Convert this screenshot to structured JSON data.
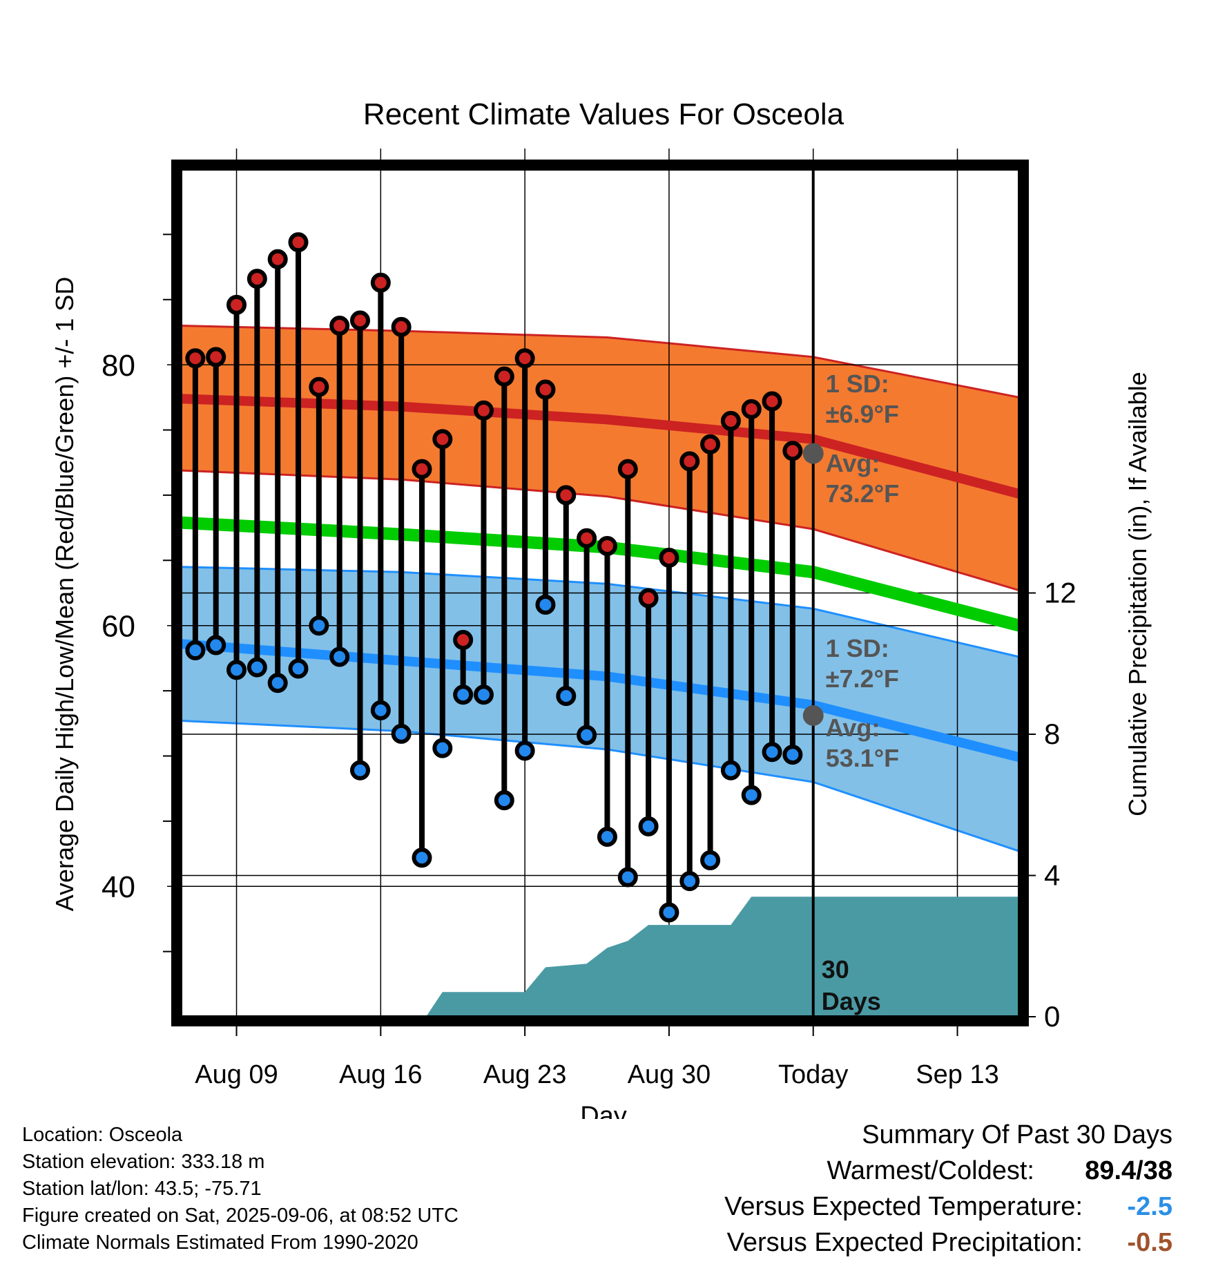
{
  "chart_data": {
    "type": "line",
    "title": "Recent Climate Values For Osceola",
    "xlabel": "Day",
    "ylabel": "Average Daily High/Low/Mean (Red/Blue/Green) +/- 1 SD",
    "y2label": "Cumulative Precipitation (in), If Available",
    "x_tick_labels": [
      "Aug 09",
      "Aug 16",
      "Aug 23",
      "Aug 30",
      "Today",
      "Sep 13"
    ],
    "y_ticks": [
      40,
      60,
      80
    ],
    "y2_ticks": [
      0,
      4,
      8,
      12
    ],
    "ylim": [
      30,
      95
    ],
    "y2lim": [
      0,
      24
    ],
    "xlim": [
      -0.7,
      40
    ],
    "days": [
      "Aug 07",
      "Aug 08",
      "Aug 09",
      "Aug 10",
      "Aug 11",
      "Aug 12",
      "Aug 13",
      "Aug 14",
      "Aug 15",
      "Aug 16",
      "Aug 17",
      "Aug 18",
      "Aug 19",
      "Aug 20",
      "Aug 21",
      "Aug 22",
      "Aug 23",
      "Aug 24",
      "Aug 25",
      "Aug 26",
      "Aug 27",
      "Aug 28",
      "Aug 29",
      "Aug 30",
      "Aug 31",
      "Sep 01",
      "Sep 02",
      "Sep 03",
      "Sep 04",
      "Sep 05"
    ],
    "series": [
      {
        "name": "Daily High",
        "color": "#cc2222",
        "values": [
          80.5,
          80.6,
          84.6,
          86.6,
          88.1,
          89.4,
          78.3,
          83.0,
          83.4,
          86.3,
          82.9,
          72.0,
          74.3,
          58.9,
          76.5,
          79.1,
          80.5,
          78.1,
          70.0,
          66.7,
          66.1,
          72.0,
          62.1,
          65.2,
          72.6,
          73.9,
          75.7,
          76.6,
          77.2,
          73.4
        ]
      },
      {
        "name": "Daily Low",
        "color": "#2288ee",
        "values": [
          58.1,
          58.5,
          56.6,
          56.8,
          55.6,
          56.7,
          60.0,
          57.6,
          48.9,
          53.5,
          51.7,
          42.2,
          50.6,
          54.7,
          54.7,
          46.6,
          50.4,
          61.6,
          54.6,
          51.6,
          43.8,
          40.7,
          44.6,
          38.0,
          40.4,
          42.0,
          48.9,
          47.0,
          50.3,
          50.1
        ]
      },
      {
        "name": "Avg High",
        "color": "#cc2222",
        "x": [
          -0.7,
          10,
          20,
          30,
          40
        ],
        "values": [
          77.4,
          76.8,
          75.8,
          74.3,
          70.1
        ]
      },
      {
        "name": "Avg Low",
        "color": "#1f8fff",
        "x": [
          -0.7,
          10,
          20,
          30,
          40
        ],
        "values": [
          58.6,
          57.3,
          56.1,
          53.9,
          49.9
        ]
      },
      {
        "name": "Avg Mean",
        "color": "#00cc00",
        "x": [
          -0.7,
          10,
          20,
          30,
          40
        ],
        "values": [
          67.9,
          67.0,
          66.0,
          64.1,
          60.0
        ]
      },
      {
        "name": "High +/- 1 SD band",
        "color": "#f47a30",
        "x": [
          -0.7,
          10,
          20,
          30,
          40
        ],
        "upper": [
          83.0,
          82.6,
          82.1,
          80.6,
          77.5
        ],
        "lower": [
          71.9,
          71.2,
          69.9,
          67.4,
          62.7
        ]
      },
      {
        "name": "Low +/- 1 SD band",
        "color": "#82c0e8",
        "x": [
          -0.7,
          10,
          20,
          30,
          40
        ],
        "upper": [
          64.5,
          64.1,
          63.2,
          61.3,
          57.6
        ],
        "lower": [
          52.7,
          51.9,
          50.5,
          48.0,
          42.7
        ]
      },
      {
        "name": "Cumulative Precipitation",
        "color": "#4a9aa4",
        "x": [
          11.2,
          12.0,
          16.0,
          17.0,
          18.0,
          19.0,
          20.0,
          21.0,
          22.0,
          23.0,
          25.0,
          26.0,
          27.0,
          28.0,
          30.0,
          40.0
        ],
        "values": [
          0,
          0.7,
          0.7,
          1.4,
          1.45,
          1.5,
          1.95,
          2.15,
          2.6,
          2.6,
          2.6,
          2.6,
          3.4,
          3.4,
          3.4,
          3.4
        ]
      }
    ],
    "annotations": {
      "high_sd": "1 SD:",
      "high_sd_val": "±6.9°F",
      "high_avg": "Avg:",
      "high_avg_val": "73.2°F",
      "high_avg_value": 73.2,
      "low_sd": "1 SD:",
      "low_sd_val": "±7.2°F",
      "low_avg": "Avg:",
      "low_avg_val": "53.1°F",
      "low_avg_value": 53.1,
      "precip_days": "30",
      "precip_days_label": "Days"
    },
    "today_index": 30
  },
  "info": {
    "location": "Location: Osceola",
    "elevation": "Station elevation: 333.18 m",
    "latlon": "Station lat/lon: 43.5; -75.71",
    "created": "Figure created on Sat, 2025-09-06, at 08:52 UTC",
    "normals": "Climate Normals Estimated From 1990-2020"
  },
  "summary": {
    "title": "Summary Of Past 30 Days",
    "warmest_label": "Warmest/Coldest:",
    "warmest_value": "89.4/38",
    "temp_label": "Versus Expected Temperature:",
    "temp_value": "-2.5",
    "temp_color": "#2a8fe8",
    "precip_label": "Versus Expected Precipitation:",
    "precip_value": "-0.5",
    "precip_color": "#a0522d"
  }
}
